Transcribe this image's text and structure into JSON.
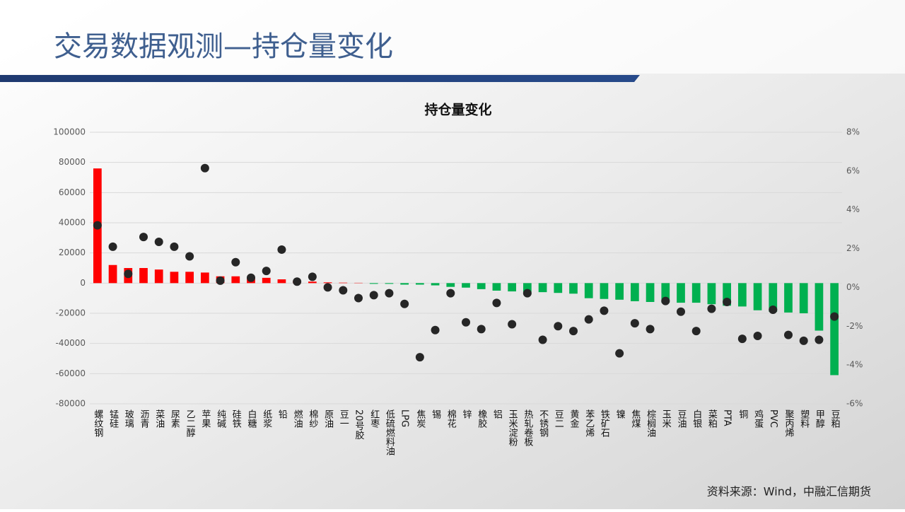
{
  "header": {
    "title": "交易数据观测—持仓量变化",
    "source": "资料来源：Wind，中融汇信期货"
  },
  "chart_data": {
    "type": "combo",
    "title": "持仓量变化",
    "categories": [
      "螺纹钢",
      "锰硅",
      "玻璃",
      "沥青",
      "菜油",
      "尿素",
      "乙二醇",
      "苹果",
      "纯碱",
      "硅铁",
      "白糖",
      "纸浆",
      "铅",
      "燃油",
      "棉纱",
      "原油",
      "豆一",
      "20号胶",
      "红枣",
      "低硫燃料油",
      "LPG",
      "焦炭",
      "锡",
      "棉花",
      "锌",
      "橡胶",
      "铝",
      "玉米淀粉",
      "热轧卷板",
      "不锈钢",
      "豆二",
      "黄金",
      "苯乙烯",
      "铁矿石",
      "镍",
      "焦煤",
      "棕榈油",
      "玉米",
      "豆油",
      "白银",
      "菜粕",
      "PTA",
      "铜",
      "鸡蛋",
      "PVC",
      "聚丙烯",
      "塑料",
      "甲醇",
      "豆粕"
    ],
    "series": [
      {
        "type": "bar",
        "positive_color": "#ff0000",
        "negative_color": "#00b050",
        "values": [
          76000,
          12000,
          10000,
          10000,
          9000,
          7500,
          7500,
          7000,
          4500,
          4500,
          3500,
          3500,
          2500,
          1500,
          1000,
          500,
          300,
          200,
          -500,
          -500,
          -1000,
          -1000,
          -1500,
          -2500,
          -3000,
          -4000,
          -5000,
          -5500,
          -6000,
          -6000,
          -6500,
          -7000,
          -10000,
          -10500,
          -11000,
          -12000,
          -12500,
          -13000,
          -13000,
          -13000,
          -14000,
          -15000,
          -15500,
          -18000,
          -19000,
          -19500,
          -20000,
          -31500,
          -61000
        ]
      },
      {
        "type": "scatter",
        "axis": "y2",
        "color": "#262626",
        "values": [
          3.2,
          2.1,
          0.7,
          2.6,
          2.35,
          2.1,
          1.6,
          6.15,
          0.35,
          1.3,
          0.5,
          0.85,
          1.95,
          0.3,
          0.55,
          0,
          -0.15,
          -0.55,
          -0.4,
          -0.3,
          -0.85,
          -3.6,
          -2.2,
          -0.3,
          -1.8,
          -2.15,
          -0.8,
          -1.9,
          -0.3,
          -2.7,
          -2.0,
          -2.25,
          -1.65,
          -1.2,
          -3.4,
          -1.85,
          -2.15,
          -0.7,
          -1.25,
          -2.25,
          -1.1,
          -0.75,
          -2.65,
          -2.5,
          -1.15,
          -2.45,
          -2.75,
          -2.7,
          -1.5
        ]
      }
    ],
    "ylim": [
      -80000,
      100000
    ],
    "yticks": [
      -80000,
      -60000,
      -40000,
      -20000,
      0,
      20000,
      40000,
      60000,
      80000,
      100000
    ],
    "y2lim": [
      -6,
      8
    ],
    "y2ticks": [
      {
        "value": -6,
        "label": "-6%"
      },
      {
        "value": -4,
        "label": "-4%"
      },
      {
        "value": -2,
        "label": "-2%"
      },
      {
        "value": 0,
        "label": "0%"
      },
      {
        "value": 2,
        "label": "2%"
      },
      {
        "value": 4,
        "label": "4%"
      },
      {
        "value": 6,
        "label": "6%"
      },
      {
        "value": 8,
        "label": "8%"
      }
    ],
    "grid": true
  }
}
